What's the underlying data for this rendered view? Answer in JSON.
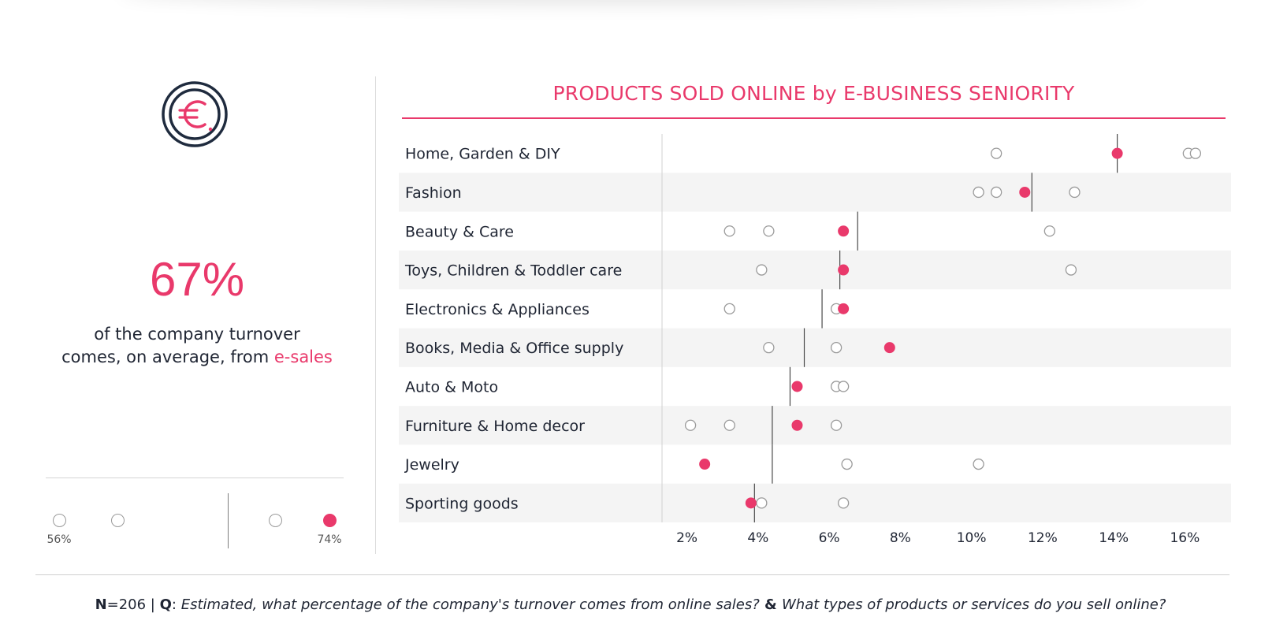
{
  "stat": {
    "value": "67%",
    "caption_line1": "of the company turnover",
    "caption_line2_prefix": "comes, on average, from ",
    "caption_accent": "e-sales"
  },
  "legend": {
    "min_label": "56%",
    "max_label": "74%"
  },
  "icons": {
    "stat_icon": "euro-coin-icon"
  },
  "colors": {
    "accent": "#e9396b",
    "text": "#1f2533",
    "hollow_marker": "#9a9a9a",
    "row_band": "#f4f4f4"
  },
  "footnote": {
    "n_label": "N",
    "n_value": "=206 | ",
    "q_label": "Q",
    "q_sep": ": ",
    "question1": "Estimated, what percentage of the company's turnover comes from online sales?",
    "amp": " & ",
    "question2": "What types of products or services do you sell online?"
  },
  "chart_data": {
    "type": "scatter",
    "title": "PRODUCTS SOLD ONLINE by E-BUSINESS SENIORITY",
    "xlabel": "",
    "ylabel": "",
    "xlim": [
      1.3,
      17.3
    ],
    "xticks": [
      2,
      4,
      6,
      8,
      10,
      12,
      14,
      16
    ],
    "tick_suffix": "%",
    "grid": false,
    "categories": [
      "Home, Garden & DIY",
      "Fashion",
      "Beauty & Care",
      "Toys, Children & Toddler care",
      "Electronics & Appliances",
      "Books, Media & Office supply",
      "Auto & Moto",
      "Furniture & Home decor",
      "Jewelry",
      "Sporting goods"
    ],
    "averages": [
      14.1,
      11.7,
      6.8,
      6.3,
      5.8,
      5.3,
      4.9,
      4.4,
      4.4,
      3.9
    ],
    "highlight_values": [
      14.1,
      11.5,
      6.4,
      6.4,
      6.4,
      7.7,
      5.1,
      5.1,
      2.5,
      3.8
    ],
    "other_values": [
      [
        10.7,
        16.1,
        16.3
      ],
      [
        10.2,
        10.7,
        12.9
      ],
      [
        3.2,
        4.3,
        12.2
      ],
      [
        4.1,
        12.8
      ],
      [
        3.2,
        6.2
      ],
      [
        4.3,
        6.2
      ],
      [
        6.2,
        6.4
      ],
      [
        2.1,
        3.2,
        6.2
      ],
      [
        6.5,
        10.2
      ],
      [
        4.1,
        6.4
      ]
    ]
  }
}
